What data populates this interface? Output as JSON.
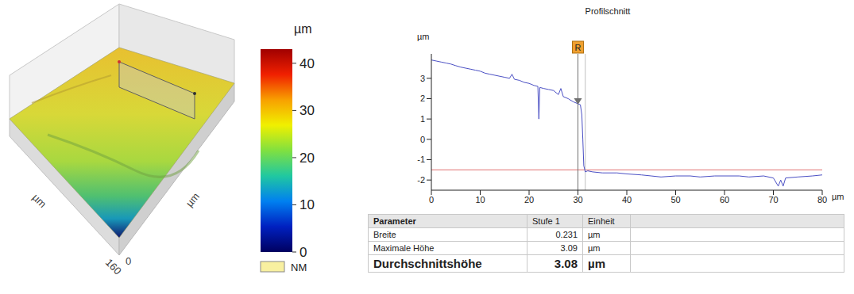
{
  "chart_data": {
    "type": "line",
    "title": "Profilschnitt",
    "x_label": "µm",
    "y_label": "µm",
    "color": "#4a4fc4",
    "x": [
      0,
      1,
      2,
      3,
      4,
      5,
      6,
      7,
      8,
      9,
      10,
      11,
      12,
      13,
      14,
      15,
      16,
      16.5,
      17,
      18,
      19,
      20,
      21,
      21.8,
      22,
      22.2,
      23,
      24,
      25,
      26,
      26.5,
      27,
      28,
      29,
      30,
      30.5,
      30.8,
      31,
      31.2,
      31.5,
      32,
      33,
      35,
      38,
      40,
      43,
      45,
      47,
      50,
      53,
      55,
      58,
      60,
      63,
      65,
      68,
      70,
      71,
      71.5,
      72,
      72.5,
      75,
      78,
      80
    ],
    "values": [
      3.9,
      3.85,
      3.8,
      3.75,
      3.7,
      3.62,
      3.55,
      3.5,
      3.45,
      3.4,
      3.35,
      3.25,
      3.2,
      3.15,
      3.1,
      3.05,
      3.0,
      3.2,
      2.95,
      2.9,
      2.8,
      2.75,
      2.65,
      2.6,
      1.0,
      2.55,
      2.5,
      2.45,
      2.4,
      2.2,
      2.5,
      2.1,
      2.0,
      1.85,
      1.75,
      1.7,
      1.2,
      0.0,
      -1.3,
      -1.6,
      -1.55,
      -1.6,
      -1.65,
      -1.65,
      -1.7,
      -1.75,
      -1.8,
      -1.85,
      -1.8,
      -1.8,
      -1.85,
      -1.8,
      -1.8,
      -1.8,
      -1.85,
      -1.8,
      -1.9,
      -2.3,
      -2.0,
      -2.3,
      -1.9,
      -1.85,
      -1.8,
      -1.75
    ],
    "xlim": [
      0,
      80
    ],
    "ylim": [
      -2.5,
      4.2
    ],
    "xticks": [
      0,
      10,
      20,
      30,
      40,
      50,
      60,
      70,
      80
    ],
    "yticks": [
      -2,
      -1,
      0,
      1,
      2,
      3
    ],
    "reference_line": {
      "y": -1.5,
      "color": "#e07070"
    },
    "cursors": [
      {
        "x": 30,
        "label": "R",
        "color": "#707070"
      },
      {
        "x": 31.5,
        "color": "#c0c0c0"
      }
    ]
  },
  "surface": {
    "axis_labels": [
      "µm",
      "µm"
    ],
    "corner_ticks": [
      160,
      0
    ],
    "colorbar": {
      "unit": "µm",
      "range": [
        0,
        43
      ],
      "ticks": [
        0,
        10,
        20,
        30,
        40
      ]
    },
    "legend_item": {
      "label": "NM",
      "color": "#f8f0a0"
    }
  },
  "table": {
    "header": [
      "Parameter",
      "Stufe 1",
      "Einheit"
    ],
    "rows": [
      [
        "Breite",
        0.231,
        "µm"
      ],
      [
        "Maximale Höhe",
        3.09,
        "µm"
      ],
      [
        "Durchschnittshöhe",
        3.08,
        "µm"
      ]
    ]
  }
}
